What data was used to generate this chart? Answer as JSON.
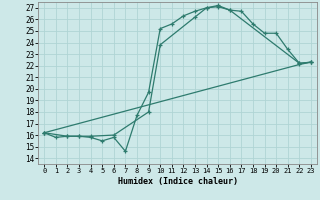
{
  "xlabel": "Humidex (Indice chaleur)",
  "xlim": [
    -0.5,
    23.5
  ],
  "ylim": [
    13.5,
    27.5
  ],
  "xticks": [
    0,
    1,
    2,
    3,
    4,
    5,
    6,
    7,
    8,
    9,
    10,
    11,
    12,
    13,
    14,
    15,
    16,
    17,
    18,
    19,
    20,
    21,
    22,
    23
  ],
  "yticks": [
    14,
    15,
    16,
    17,
    18,
    19,
    20,
    21,
    22,
    23,
    24,
    25,
    26,
    27
  ],
  "bg_color": "#cde8e8",
  "grid_color": "#b0d4d4",
  "line_color": "#2e7b6e",
  "line1_x": [
    0,
    1,
    2,
    3,
    4,
    5,
    6,
    7,
    8,
    9,
    10,
    11,
    12,
    13,
    14,
    15,
    16,
    22,
    23
  ],
  "line1_y": [
    16.2,
    15.8,
    15.9,
    15.9,
    15.8,
    15.5,
    15.8,
    14.6,
    17.7,
    19.7,
    25.2,
    25.6,
    26.3,
    26.7,
    27.0,
    27.1,
    26.8,
    22.2,
    22.3
  ],
  "line2_x": [
    0,
    2,
    3,
    4,
    6,
    9,
    10,
    13,
    14,
    15,
    16,
    17,
    18,
    19,
    20,
    21,
    22,
    23
  ],
  "line2_y": [
    16.2,
    15.9,
    15.9,
    15.9,
    16.0,
    18.0,
    23.8,
    26.2,
    27.0,
    27.2,
    26.8,
    26.7,
    25.6,
    24.8,
    24.8,
    23.4,
    22.2,
    22.3
  ],
  "line3_x": [
    0,
    22,
    23
  ],
  "line3_y": [
    16.2,
    22.1,
    22.3
  ]
}
